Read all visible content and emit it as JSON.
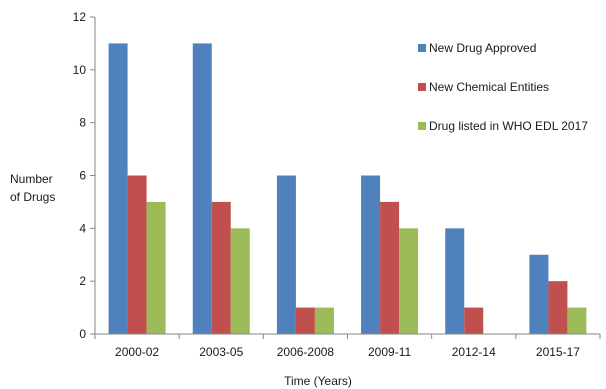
{
  "chart_data": {
    "type": "bar",
    "title": "",
    "xlabel": "Time (Years)",
    "ylabel_lines": [
      "Number",
      "of Drugs"
    ],
    "ylim": [
      0,
      12
    ],
    "yticks": [
      0,
      2,
      4,
      6,
      8,
      10,
      12
    ],
    "grid": false,
    "legend_position": "right",
    "categories": [
      "2000-02",
      "2003-05",
      "2006-2008",
      "2009-11",
      "2012-14",
      "2015-17"
    ],
    "series": [
      {
        "name": "New Drug Approved",
        "color": "#4f81bd",
        "values": [
          11,
          11,
          6,
          6,
          4,
          3
        ]
      },
      {
        "name": "New Chemical Entities",
        "color": "#c0504d",
        "values": [
          6,
          5,
          1,
          5,
          1,
          2
        ]
      },
      {
        "name": "Drug listed in WHO EDL 2017",
        "color": "#9bbb59",
        "values": [
          5,
          4,
          1,
          4,
          0,
          1
        ]
      }
    ]
  }
}
